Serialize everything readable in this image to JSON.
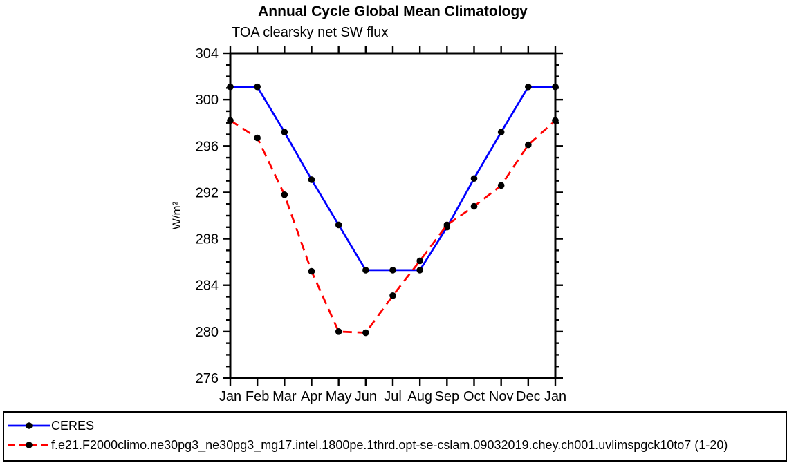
{
  "title": "Annual Cycle Global Mean Climatology",
  "subtitle": "TOA clearsky net SW flux",
  "legend": {
    "items": [
      {
        "label": "CERES",
        "color": "#0000ff",
        "style": "solid"
      },
      {
        "label": "f.e21.F2000climo.ne30pg3_ne30pg3_mg17.intel.1800pe.1thrd.opt-se-cslam.09032019.chey.ch001.uvlimspgck10to7 (1-20)",
        "color": "#ff0000",
        "style": "dashed"
      }
    ]
  },
  "chart_data": {
    "type": "line",
    "title": "Annual Cycle Global Mean Climatology",
    "subtitle": "TOA clearsky net SW flux",
    "ylabel": "W/m²",
    "xlabel": "",
    "categories": [
      "Jan",
      "Feb",
      "Mar",
      "Apr",
      "May",
      "Jun",
      "Jul",
      "Aug",
      "Sep",
      "Oct",
      "Nov",
      "Dec",
      "Jan"
    ],
    "series": [
      {
        "name": "CERES",
        "color": "#0000ff",
        "dash": "solid",
        "values": [
          301.1,
          301.1,
          297.2,
          293.1,
          289.2,
          285.3,
          285.3,
          285.3,
          289.0,
          293.2,
          297.2,
          301.1,
          301.1
        ]
      },
      {
        "name": "f.e21.F2000climo.ne30pg3_ne30pg3_mg17.intel.1800pe.1thrd.opt-se-cslam.09032019.chey.ch001.uvlimspgck10to7 (1-20)",
        "color": "#ff0000",
        "dash": "dashed",
        "values": [
          298.2,
          296.7,
          291.8,
          285.2,
          280.0,
          279.9,
          283.1,
          286.1,
          289.2,
          290.8,
          292.6,
          296.1,
          298.2
        ]
      }
    ],
    "ylim": [
      276,
      304
    ],
    "yticks": [
      276,
      280,
      284,
      288,
      292,
      296,
      300,
      304
    ],
    "ytick_major": 4,
    "ytick_minor": 1,
    "grid": false,
    "legend_position": "bottom-box",
    "marker": "filled-circle",
    "marker_color": "#000000",
    "axis_color": "#000000"
  }
}
